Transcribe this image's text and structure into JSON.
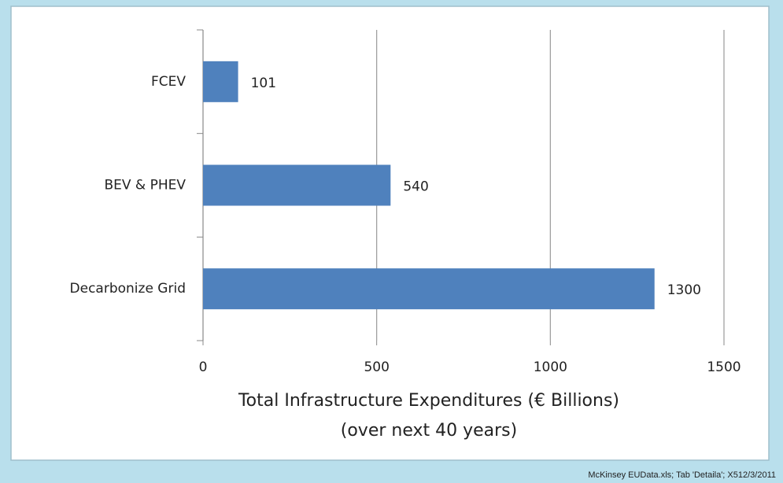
{
  "chart_data": {
    "type": "hbar",
    "categories": [
      "FCEV",
      "BEV & PHEV",
      "Decarbonize Grid"
    ],
    "values": [
      101,
      540,
      1300
    ],
    "color": "#4f81bd",
    "xlabel": [
      "Total Infrastructure Expenditures (€ Billions)",
      "(over next 40 years)"
    ],
    "xlim": [
      0,
      1500
    ],
    "xticks": [
      0,
      500,
      1000,
      1500
    ],
    "grid": true,
    "source": "McKinsey EUData.xls; Tab 'Detaila'; X512/3/2011"
  }
}
